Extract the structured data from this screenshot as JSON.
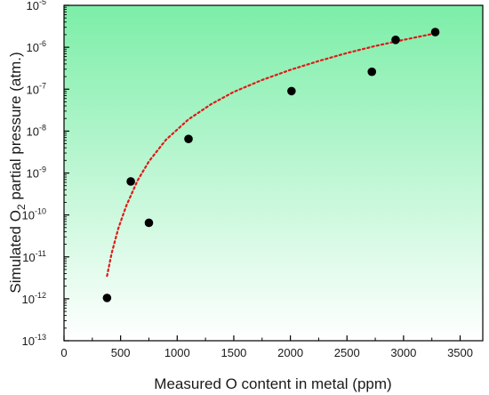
{
  "chart_data": {
    "type": "scatter",
    "xlabel": "Measured O content in metal (ppm)",
    "ylabel": {
      "before": "Simulated O",
      "sub": "2",
      "after": " partial pressure (atm.)"
    },
    "xlim": [
      0,
      3700
    ],
    "xticks": [
      0,
      500,
      1000,
      1500,
      2000,
      2500,
      3000,
      3500
    ],
    "ylog": true,
    "ylim": [
      1e-13,
      1e-05
    ],
    "yticks": [
      {
        "base": "10",
        "exp": "-13",
        "value": 1e-13
      },
      {
        "base": "10",
        "exp": "-12",
        "value": 1e-12
      },
      {
        "base": "10",
        "exp": "-11",
        "value": 1e-11
      },
      {
        "base": "10",
        "exp": "-10",
        "value": 1e-10
      },
      {
        "base": "10",
        "exp": "-9",
        "value": 1e-09
      },
      {
        "base": "10",
        "exp": "-8",
        "value": 1e-08
      },
      {
        "base": "10",
        "exp": "-7",
        "value": 1e-07
      },
      {
        "base": "10",
        "exp": "-6",
        "value": 1e-06
      },
      {
        "base": "10",
        "exp": "-5",
        "value": 1e-05
      }
    ],
    "points": [
      {
        "x": 380,
        "y": 1.05e-12
      },
      {
        "x": 590,
        "y": 6.3e-10
      },
      {
        "x": 750,
        "y": 6.5e-11
      },
      {
        "x": 1100,
        "y": 6.5e-09
      },
      {
        "x": 2010,
        "y": 9e-08
      },
      {
        "x": 2720,
        "y": 2.6e-07
      },
      {
        "x": 2930,
        "y": 1.5e-06
      },
      {
        "x": 3280,
        "y": 2.3e-06
      }
    ],
    "fit_curve": {
      "x": [
        380,
        420,
        480,
        550,
        650,
        750,
        900,
        1100,
        1300,
        1500,
        1750,
        2000,
        2250,
        2500,
        2750,
        3000,
        3280
      ],
      "y": [
        3.5e-12,
        1.2e-11,
        4.8e-11,
        1.65e-10,
        6.6e-10,
        1.9e-09,
        6.2e-09,
        1.9e-08,
        4.4e-08,
        8.6e-08,
        1.66e-07,
        2.9e-07,
        4.7e-07,
        7.3e-07,
        1.07e-06,
        1.5e-06,
        2.15e-06
      ],
      "color": "#e01a1a"
    },
    "grid": false,
    "colors": {
      "marker": "#000000",
      "fit": "#e01a1a",
      "bg_top": "#7ceea8",
      "bg_bottom": "#ffffff"
    }
  }
}
